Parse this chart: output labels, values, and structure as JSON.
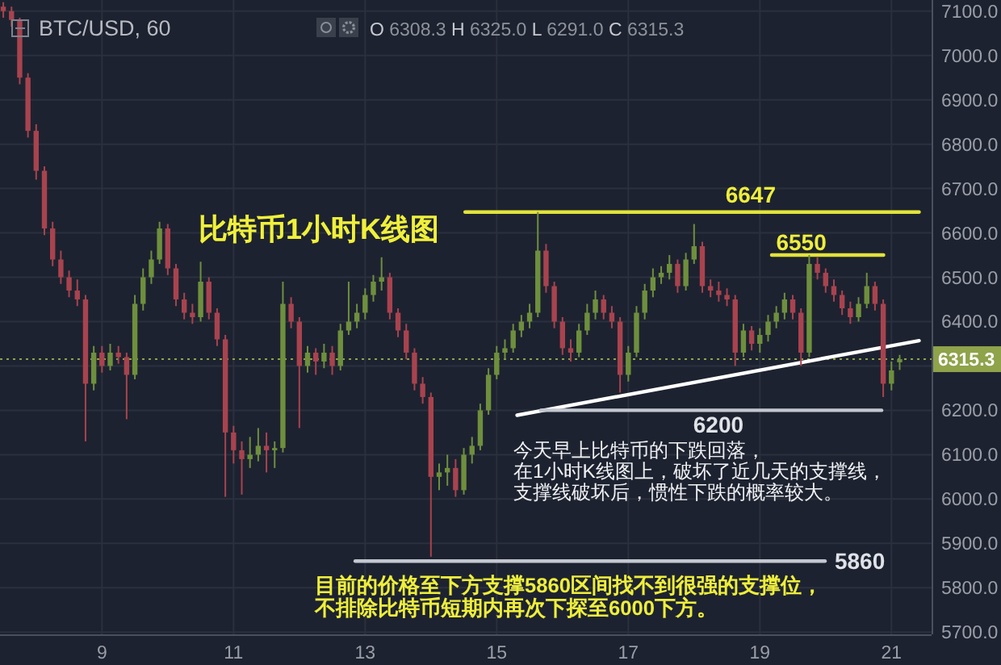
{
  "chart_data": {
    "type": "candlestick",
    "title": "BTC/USD, 60",
    "subtitle": "比特币1小时K线图",
    "x": [
      7.5,
      7.625,
      7.75,
      7.875,
      8.0,
      8.125,
      8.25,
      8.375,
      8.5,
      8.625,
      8.75,
      8.875,
      9.0,
      9.125,
      9.25,
      9.375,
      9.5,
      9.625,
      9.75,
      9.875,
      10.0,
      10.125,
      10.25,
      10.375,
      10.5,
      10.625,
      10.75,
      10.875,
      11.0,
      11.125,
      11.25,
      11.375,
      11.5,
      11.625,
      11.75,
      11.875,
      12.0,
      12.125,
      12.25,
      12.375,
      12.5,
      12.625,
      12.75,
      12.875,
      13.0,
      13.125,
      13.25,
      13.375,
      13.5,
      13.625,
      13.75,
      13.875,
      14.0,
      14.125,
      14.25,
      14.375,
      14.5,
      14.625,
      14.75,
      14.875,
      15.0,
      15.125,
      15.25,
      15.375,
      15.5,
      15.625,
      15.75,
      15.875,
      16.0,
      16.125,
      16.25,
      16.375,
      16.5,
      16.625,
      16.75,
      16.875,
      17.0,
      17.125,
      17.25,
      17.375,
      17.5,
      17.625,
      17.75,
      17.875,
      18.0,
      18.125,
      18.25,
      18.375,
      18.5,
      18.625,
      18.75,
      18.875,
      19.0,
      19.125,
      19.25,
      19.375,
      19.5,
      19.625,
      19.75,
      19.875,
      20.0,
      20.125,
      20.25,
      20.375,
      20.5,
      20.625,
      20.75,
      20.875,
      21.0,
      21.125
    ],
    "ohlc": [
      [
        7110,
        7120,
        7085,
        7100
      ],
      [
        7100,
        7110,
        7065,
        7080
      ],
      [
        7080,
        7085,
        6935,
        6950
      ],
      [
        6950,
        6960,
        6815,
        6830
      ],
      [
        6830,
        6845,
        6720,
        6740
      ],
      [
        6740,
        6750,
        6595,
        6610
      ],
      [
        6610,
        6625,
        6525,
        6540
      ],
      [
        6540,
        6560,
        6485,
        6500
      ],
      [
        6500,
        6515,
        6455,
        6470
      ],
      [
        6470,
        6495,
        6435,
        6450
      ],
      [
        6450,
        6460,
        6130,
        6260
      ],
      [
        6260,
        6345,
        6245,
        6330
      ],
      [
        6330,
        6345,
        6285,
        6300
      ],
      [
        6300,
        6350,
        6290,
        6330
      ],
      [
        6330,
        6345,
        6305,
        6320
      ],
      [
        6320,
        6330,
        6180,
        6280
      ],
      [
        6280,
        6460,
        6270,
        6440
      ],
      [
        6440,
        6520,
        6425,
        6500
      ],
      [
        6500,
        6560,
        6485,
        6540
      ],
      [
        6540,
        6625,
        6530,
        6610
      ],
      [
        6610,
        6620,
        6505,
        6520
      ],
      [
        6520,
        6530,
        6435,
        6450
      ],
      [
        6450,
        6465,
        6405,
        6420
      ],
      [
        6420,
        6440,
        6395,
        6410
      ],
      [
        6410,
        6535,
        6400,
        6490
      ],
      [
        6490,
        6500,
        6405,
        6420
      ],
      [
        6420,
        6430,
        6345,
        6360
      ],
      [
        6360,
        6370,
        6005,
        6150
      ],
      [
        6150,
        6165,
        6080,
        6110
      ],
      [
        6110,
        6130,
        6010,
        6090
      ],
      [
        6090,
        6140,
        6070,
        6100
      ],
      [
        6100,
        6160,
        6085,
        6120
      ],
      [
        6120,
        6150,
        6060,
        6110
      ],
      [
        6110,
        6130,
        6070,
        6115
      ],
      [
        6115,
        6490,
        6105,
        6440
      ],
      [
        6440,
        6455,
        6385,
        6400
      ],
      [
        6400,
        6410,
        6160,
        6300
      ],
      [
        6300,
        6345,
        6285,
        6330
      ],
      [
        6330,
        6340,
        6280,
        6310
      ],
      [
        6310,
        6350,
        6295,
        6330
      ],
      [
        6330,
        6345,
        6280,
        6300
      ],
      [
        6300,
        6395,
        6290,
        6380
      ],
      [
        6380,
        6490,
        6370,
        6400
      ],
      [
        6400,
        6440,
        6385,
        6420
      ],
      [
        6420,
        6475,
        6405,
        6460
      ],
      [
        6460,
        6505,
        6445,
        6490
      ],
      [
        6490,
        6545,
        6470,
        6500
      ],
      [
        6500,
        6510,
        6405,
        6420
      ],
      [
        6420,
        6430,
        6365,
        6380
      ],
      [
        6380,
        6395,
        6315,
        6330
      ],
      [
        6330,
        6340,
        6245,
        6260
      ],
      [
        6260,
        6275,
        6215,
        6230
      ],
      [
        6230,
        6240,
        5870,
        6050
      ],
      [
        6050,
        6080,
        6020,
        6060
      ],
      [
        6060,
        6100,
        6030,
        6070
      ],
      [
        6070,
        6090,
        6005,
        6020
      ],
      [
        6020,
        6115,
        6010,
        6100
      ],
      [
        6100,
        6140,
        6080,
        6120
      ],
      [
        6120,
        6215,
        6110,
        6200
      ],
      [
        6200,
        6295,
        6190,
        6280
      ],
      [
        6280,
        6345,
        6270,
        6330
      ],
      [
        6330,
        6360,
        6315,
        6340
      ],
      [
        6340,
        6395,
        6330,
        6380
      ],
      [
        6380,
        6415,
        6365,
        6400
      ],
      [
        6400,
        6440,
        6385,
        6420
      ],
      [
        6420,
        6647,
        6410,
        6560
      ],
      [
        6560,
        6575,
        6465,
        6480
      ],
      [
        6480,
        6490,
        6385,
        6400
      ],
      [
        6400,
        6410,
        6325,
        6340
      ],
      [
        6340,
        6360,
        6310,
        6330
      ],
      [
        6330,
        6395,
        6320,
        6380
      ],
      [
        6380,
        6440,
        6370,
        6420
      ],
      [
        6420,
        6470,
        6405,
        6450
      ],
      [
        6450,
        6460,
        6405,
        6420
      ],
      [
        6420,
        6435,
        6385,
        6400
      ],
      [
        6400,
        6410,
        6240,
        6280
      ],
      [
        6280,
        6345,
        6265,
        6330
      ],
      [
        6330,
        6435,
        6320,
        6420
      ],
      [
        6420,
        6485,
        6405,
        6470
      ],
      [
        6470,
        6520,
        6455,
        6500
      ],
      [
        6500,
        6525,
        6485,
        6510
      ],
      [
        6510,
        6550,
        6495,
        6530
      ],
      [
        6530,
        6540,
        6465,
        6480
      ],
      [
        6480,
        6555,
        6470,
        6540
      ],
      [
        6540,
        6620,
        6530,
        6570
      ],
      [
        6570,
        6580,
        6465,
        6480
      ],
      [
        6480,
        6495,
        6455,
        6470
      ],
      [
        6470,
        6490,
        6445,
        6460
      ],
      [
        6460,
        6475,
        6435,
        6450
      ],
      [
        6450,
        6460,
        6300,
        6330
      ],
      [
        6330,
        6395,
        6320,
        6380
      ],
      [
        6380,
        6390,
        6335,
        6350
      ],
      [
        6350,
        6385,
        6330,
        6370
      ],
      [
        6370,
        6415,
        6355,
        6400
      ],
      [
        6400,
        6435,
        6385,
        6420
      ],
      [
        6420,
        6465,
        6405,
        6450
      ],
      [
        6450,
        6460,
        6405,
        6420
      ],
      [
        6420,
        6430,
        6300,
        6330
      ],
      [
        6330,
        6550,
        6320,
        6530
      ],
      [
        6530,
        6545,
        6495,
        6510
      ],
      [
        6510,
        6520,
        6465,
        6480
      ],
      [
        6480,
        6495,
        6445,
        6460
      ],
      [
        6460,
        6470,
        6415,
        6430
      ],
      [
        6430,
        6445,
        6395,
        6410
      ],
      [
        6410,
        6455,
        6400,
        6440
      ],
      [
        6440,
        6510,
        6430,
        6480
      ],
      [
        6480,
        6490,
        6425,
        6440
      ],
      [
        6440,
        6450,
        6230,
        6260
      ],
      [
        6260,
        6310,
        6245,
        6290
      ],
      [
        6308.3,
        6325.0,
        6291.0,
        6315.3
      ]
    ],
    "colors": [
      "#a8434e",
      "#a8434e",
      "#a8434e",
      "#a8434e",
      "#a8434e",
      "#a8434e",
      "#a8434e",
      "#a8434e",
      "#a8434e",
      "#a8434e",
      "#a8434e",
      "#6e8f3d",
      "#a8434e",
      "#6e8f3d",
      "#a8434e",
      "#a8434e",
      "#6e8f3d",
      "#6e8f3d",
      "#6e8f3d",
      "#6e8f3d",
      "#a8434e",
      "#a8434e",
      "#a8434e",
      "#a8434e",
      "#6e8f3d",
      "#a8434e",
      "#a8434e",
      "#a8434e",
      "#a8434e",
      "#a8434e",
      "#6e8f3d",
      "#6e8f3d",
      "#a8434e",
      "#6e8f3d",
      "#6e8f3d",
      "#a8434e",
      "#a8434e",
      "#6e8f3d",
      "#a8434e",
      "#6e8f3d",
      "#a8434e",
      "#6e8f3d",
      "#6e8f3d",
      "#6e8f3d",
      "#6e8f3d",
      "#6e8f3d",
      "#6e8f3d",
      "#a8434e",
      "#a8434e",
      "#a8434e",
      "#a8434e",
      "#a8434e",
      "#a8434e",
      "#6e8f3d",
      "#6e8f3d",
      "#a8434e",
      "#6e8f3d",
      "#6e8f3d",
      "#6e8f3d",
      "#6e8f3d",
      "#6e8f3d",
      "#6e8f3d",
      "#6e8f3d",
      "#6e8f3d",
      "#6e8f3d",
      "#6e8f3d",
      "#a8434e",
      "#a8434e",
      "#a8434e",
      "#a8434e",
      "#6e8f3d",
      "#6e8f3d",
      "#6e8f3d",
      "#a8434e",
      "#a8434e",
      "#a8434e",
      "#6e8f3d",
      "#6e8f3d",
      "#6e8f3d",
      "#6e8f3d",
      "#6e8f3d",
      "#6e8f3d",
      "#a8434e",
      "#6e8f3d",
      "#6e8f3d",
      "#a8434e",
      "#a8434e",
      "#a8434e",
      "#a8434e",
      "#a8434e",
      "#6e8f3d",
      "#a8434e",
      "#6e8f3d",
      "#6e8f3d",
      "#6e8f3d",
      "#6e8f3d",
      "#a8434e",
      "#a8434e",
      "#6e8f3d",
      "#a8434e",
      "#a8434e",
      "#a8434e",
      "#a8434e",
      "#a8434e",
      "#6e8f3d",
      "#6e8f3d",
      "#a8434e",
      "#a8434e",
      "#6e8f3d",
      "#6e8f3d"
    ],
    "series": [
      {
        "type": "line",
        "color": "#e2e23c",
        "x": [
          14.52,
          21.42
        ],
        "values": [
          6647,
          6647
        ]
      },
      {
        "type": "line",
        "color": "#e2e23c",
        "x": [
          19.18,
          20.88
        ],
        "values": [
          6550,
          6550
        ]
      },
      {
        "type": "line",
        "color": "#ffffff",
        "x": [
          15.31,
          21.42
        ],
        "values": [
          6189,
          6357
        ]
      },
      {
        "type": "line",
        "color": "#c3c7cf",
        "x": [
          15.67,
          20.85
        ],
        "values": [
          6200,
          6200
        ]
      },
      {
        "type": "line",
        "color": "#c3c7cf",
        "x": [
          12.85,
          19.99
        ],
        "values": [
          5860,
          5860
        ]
      }
    ],
    "xlim": [
      7.45,
      21.61
    ],
    "ylim": [
      5695,
      7125
    ],
    "xticks": [
      9,
      11,
      13,
      15,
      17,
      19,
      21
    ],
    "yticks": [
      {
        "value": 5700,
        "label": "5700.0"
      },
      {
        "value": 5800,
        "label": "5800.0"
      },
      {
        "value": 5900,
        "label": "5900.0"
      },
      {
        "value": 6000,
        "label": "6000.0"
      },
      {
        "value": 6100,
        "label": "6100.0"
      },
      {
        "value": 6200,
        "label": "6200.0"
      },
      {
        "value": 6300,
        "label": null
      },
      {
        "value": 6400,
        "label": "6400.0"
      },
      {
        "value": 6500,
        "label": "6500.0"
      },
      {
        "value": 6600,
        "label": "6600.0"
      },
      {
        "value": 6700,
        "label": "6700.0"
      },
      {
        "value": 6800,
        "label": "6800.0"
      },
      {
        "value": 6900,
        "label": "6900.0"
      },
      {
        "value": 7000,
        "label": "7000.0"
      },
      {
        "value": 7100,
        "label": "7100.0"
      }
    ],
    "grid": true,
    "ref_lines": [
      {
        "axis": "y",
        "value": 6315.3,
        "label": "6315.3",
        "color": "#8ea34a",
        "line_style": "dotted"
      }
    ],
    "annotations": [
      "O 6308.3 H 6325.0 L 6291.0 C 6315.3",
      {
        "text": "6647",
        "x": 18.86,
        "y": 6647
      },
      {
        "text": "6550",
        "x": 19.63,
        "y": 6550
      },
      {
        "text": "6200",
        "x": 18.37,
        "y": 6200
      },
      {
        "text": "5860",
        "x": 19.99,
        "y": 5860
      },
      "今天早上比特币的下跌回落，在1小时K线图上，破坏了近几天的支撑线，支撑线破坏后，惯性下跌的概率较大。",
      "目前的价格至下方支撑5860区间找不到很强的支撑位，不排除比特币短期内再次下探至6000下方。"
    ]
  }
}
